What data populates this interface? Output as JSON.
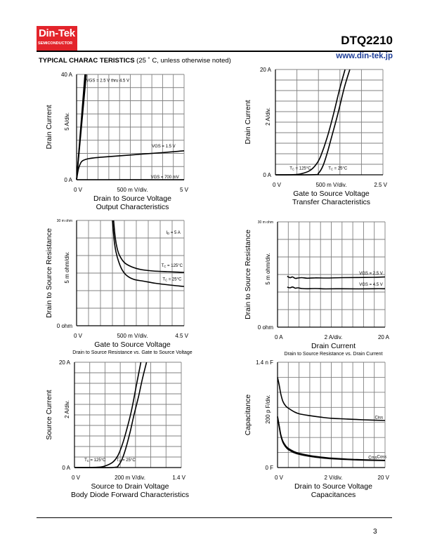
{
  "header": {
    "logo_brand": "Din-Tek",
    "logo_sub": "SEMICONDUCTOR",
    "part_number": "DTQ2210",
    "url": "www.din-tek.jp",
    "section_title_bold": "TYPICAL CHARAC TERISTICS",
    "section_title_note": " (25 ˚ C, unless otherwise noted)"
  },
  "footer": {
    "page_number": "3"
  },
  "colors": {
    "logo_bg": "#e3242b",
    "url": "#1f3f99",
    "grid": "#808080"
  },
  "chart_data": [
    {
      "type": "line",
      "title": "Output Characteristics",
      "xlabel": "Drain to Source Voltage",
      "ylabel": "Drain Current",
      "x_div_label": "500 m V/div.",
      "y_div_label": "5  A/div.",
      "x_min_label": "0  V",
      "x_max_label": "5  V",
      "y_min_label": "0  A",
      "y_max_label": "40  A",
      "xlim": [
        0,
        5
      ],
      "ylim": [
        0,
        40
      ],
      "x_divs": 10,
      "y_divs": 8,
      "grid": true,
      "series": [
        {
          "name": "VGS = 2.5 V thru 4.5 V (a)",
          "x": [
            0,
            0.45
          ],
          "y": [
            0,
            40
          ]
        },
        {
          "name": "VGS = 2.5 V thru 4.5 V (b)",
          "x": [
            0,
            0.42
          ],
          "y": [
            0,
            40
          ]
        },
        {
          "name": "VGS = 2.5 V thru 4.5 V (c)",
          "x": [
            0,
            0.39
          ],
          "y": [
            0,
            40
          ]
        },
        {
          "name": "VGS = 1.5 V",
          "x": [
            0,
            0.05,
            0.1,
            0.2,
            0.3,
            0.5,
            0.8,
            1.2,
            2,
            3,
            4,
            5
          ],
          "y": [
            0,
            2.5,
            4.5,
            6.5,
            7.3,
            7.9,
            8.3,
            8.6,
            9.1,
            9.7,
            10.3,
            11
          ]
        },
        {
          "name": "VGS = 700 mV",
          "x": [
            0,
            5
          ],
          "y": [
            0,
            0
          ]
        }
      ],
      "annotations": [
        {
          "text": "VGS = 2.5 V thru 4.5 V",
          "x": 0.45,
          "y": 37.2
        },
        {
          "text": "VGS =  1.5 V",
          "x": 3.5,
          "y": 12.3
        },
        {
          "text": "VGS = 700 mV",
          "x": 3.45,
          "y": 0.6
        }
      ]
    },
    {
      "type": "line",
      "title": "Transfer Characteristics",
      "xlabel": "Gate to Source Voltage",
      "ylabel": "Drain Current",
      "x_div_label": "500 m V/div.",
      "y_div_label": "2  A/div.",
      "x_min_label": "0  V",
      "x_max_label": "2.5  V",
      "y_min_label": "0  A",
      "y_max_label": "20  A",
      "xlim": [
        0,
        2.5
      ],
      "ylim": [
        0,
        20
      ],
      "x_divs": 5,
      "y_divs": 10,
      "grid": true,
      "series": [
        {
          "name": "TC = 125°C",
          "x": [
            0,
            0.4,
            0.6,
            0.8,
            0.95,
            1.05,
            1.2,
            1.35,
            1.5,
            1.62
          ],
          "y": [
            0,
            0.02,
            0.2,
            0.8,
            2,
            3.5,
            7,
            11.5,
            16.5,
            20
          ]
        },
        {
          "name": "TC = 25°C",
          "x": [
            0,
            0.9,
            1.0,
            1.1,
            1.2,
            1.3,
            1.45,
            1.6,
            1.73
          ],
          "y": [
            0,
            0.02,
            0.3,
            1.6,
            4,
            7,
            11.5,
            16.5,
            20
          ]
        }
      ],
      "annotations": [
        {
          "text": "TC = 125°C",
          "x": 0.33,
          "y": 1.0
        },
        {
          "text": "TC = 25°C",
          "x": 1.23,
          "y": 1.0
        }
      ]
    },
    {
      "type": "line",
      "title": "Drain to Source Resistance vs. Gate to Source Voltage",
      "xlabel": "Gate to Source Voltage",
      "ylabel": "Drain to Source Resistance",
      "x_div_label": "500 m V/div.",
      "y_div_label": "5 m ohm/div.",
      "x_min_label": "0  V",
      "x_max_label": "4.5  V",
      "y_min_label": "0  ohm",
      "y_max_label": "30 m ohm",
      "xlim": [
        0,
        4.5
      ],
      "ylim": [
        0,
        30
      ],
      "x_divs": 9,
      "y_divs": 6,
      "grid": true,
      "series": [
        {
          "name": "TC = 125°C",
          "x": [
            1.55,
            1.62,
            1.7,
            1.8,
            2.0,
            2.3,
            2.7,
            3.2,
            3.8,
            4.5
          ],
          "y": [
            30,
            25,
            22,
            20,
            18,
            16.8,
            16.0,
            15.6,
            15.4,
            15.2
          ]
        },
        {
          "name": "TC = 25°C",
          "x": [
            1.5,
            1.58,
            1.65,
            1.75,
            1.9,
            2.1,
            2.4,
            2.8,
            3.3,
            3.9,
            4.5
          ],
          "y": [
            30,
            24,
            21,
            18.5,
            16,
            14.3,
            13.2,
            12.7,
            12.1,
            11.6,
            11.2
          ]
        }
      ],
      "annotations": [
        {
          "text": "ID = 5 A",
          "x": 3.75,
          "y": 26.2
        },
        {
          "text": "TC = 125°C",
          "x": 3.55,
          "y": 16.8
        },
        {
          "text": "TC = 25°C",
          "x": 3.6,
          "y": 12.9
        }
      ]
    },
    {
      "type": "line",
      "title": "Drain to Source Resistance vs. Drain Current",
      "xlabel": "Drain Current",
      "ylabel": "Drain to Source Resistance",
      "x_div_label": "2  A/div.",
      "y_div_label": "5 m ohm/div.",
      "x_min_label": "0  A",
      "x_max_label": "20  A",
      "y_min_label": "0  ohm",
      "y_max_label": "30 m ohm",
      "xlim": [
        0,
        20
      ],
      "ylim": [
        0,
        30
      ],
      "x_divs": 10,
      "y_divs": 6,
      "grid": true,
      "series": [
        {
          "name": "VGS = 2.5 V",
          "x": [
            1.8,
            2.3,
            2.8,
            3.3,
            3.8,
            4.5,
            5.5,
            7,
            9,
            12,
            15,
            18,
            20
          ],
          "y": [
            14.5,
            14.1,
            14.3,
            13.9,
            14.0,
            14.1,
            13.95,
            14.05,
            14.0,
            14.1,
            14.15,
            14.2,
            14.3
          ]
        },
        {
          "name": "VGS = 4.5 V",
          "x": [
            1.8,
            2.3,
            2.8,
            3.3,
            3.8,
            4.5,
            5.5,
            7,
            9,
            12,
            15,
            18,
            20
          ],
          "y": [
            11.4,
            11.2,
            11.45,
            11.1,
            11.2,
            11.0,
            10.95,
            11.0,
            10.9,
            10.95,
            10.9,
            10.95,
            10.95
          ]
        }
      ],
      "annotations": [
        {
          "text": "VGS = 2.5 V",
          "x": 15.2,
          "y": 15.0
        },
        {
          "text": "VGS = 4.5 V",
          "x": 15.2,
          "y": 11.8
        }
      ]
    },
    {
      "type": "line",
      "title": "Body Diode Forward Characteristics",
      "xlabel": "Source to Drain Voltage",
      "ylabel": "Source Current",
      "x_div_label": "200 m V/div.",
      "y_div_label": "2  A/div.",
      "x_min_label": "0  V",
      "x_max_label": "1.4  V",
      "y_min_label": "0  A",
      "y_max_label": "20  A",
      "xlim": [
        0,
        1.4
      ],
      "ylim": [
        0,
        20
      ],
      "x_divs": 7,
      "y_divs": 10,
      "grid": true,
      "series": [
        {
          "name": "TC = 125°C",
          "x": [
            0,
            0.3,
            0.4,
            0.5,
            0.57,
            0.63,
            0.69,
            0.75,
            0.81,
            0.87
          ],
          "y": [
            0,
            0.05,
            0.3,
            1.0,
            2.3,
            4.5,
            7.5,
            11,
            15.5,
            20
          ]
        },
        {
          "name": "TC = 25°C",
          "x": [
            0,
            0.5,
            0.58,
            0.63,
            0.68,
            0.73,
            0.78,
            0.84,
            0.89,
            0.945
          ],
          "y": [
            0,
            0.02,
            0.5,
            1.8,
            4.0,
            6.8,
            10,
            13.5,
            16.8,
            20
          ]
        }
      ],
      "annotations": [
        {
          "text": "TC = 125°C",
          "x": 0.13,
          "y": 1.2
        },
        {
          "text": "TC = 25°C",
          "x": 0.55,
          "y": 1.2
        }
      ]
    },
    {
      "type": "line",
      "title": "Capacitances",
      "xlabel": "Drain to Source Voltage",
      "ylabel": "Capacitance",
      "x_div_label": "2  V/div.",
      "y_div_label": "200 p F/div.",
      "x_min_label": "0  V",
      "x_max_label": "20  V",
      "y_min_label": "0  F",
      "y_max_label": "1.4 n F",
      "xlim": [
        0,
        20
      ],
      "ylim": [
        0,
        1400
      ],
      "x_divs": 10,
      "y_divs": 7,
      "grid": true,
      "series": [
        {
          "name": "Ciss",
          "x": [
            0,
            0.3,
            0.6,
            1.0,
            1.5,
            2,
            3,
            4,
            6,
            8,
            10,
            13,
            16,
            20
          ],
          "y": [
            1200,
            1100,
            980,
            880,
            820,
            790,
            745,
            715,
            690,
            670,
            655,
            645,
            635,
            625
          ]
        },
        {
          "name": "Coss",
          "x": [
            0,
            0.3,
            0.6,
            1.0,
            1.5,
            2,
            3,
            4,
            6,
            8,
            10,
            13,
            16,
            20
          ],
          "y": [
            680,
            560,
            440,
            350,
            290,
            255,
            215,
            190,
            160,
            140,
            125,
            112,
            104,
            96
          ]
        },
        {
          "name": "Crss",
          "x": [
            0,
            0.3,
            0.6,
            1.0,
            1.5,
            2,
            3,
            4,
            6,
            8,
            10,
            13,
            16,
            20
          ],
          "y": [
            670,
            545,
            425,
            335,
            275,
            240,
            200,
            176,
            148,
            130,
            117,
            106,
            98,
            92
          ]
        }
      ],
      "annotations": [
        {
          "text": "Ciss",
          "x": 18.1,
          "y": 650
        },
        {
          "text": "Crss",
          "x": 16.9,
          "y": 118
        },
        {
          "text": "Coss",
          "x": 18.5,
          "y": 125
        }
      ]
    }
  ]
}
